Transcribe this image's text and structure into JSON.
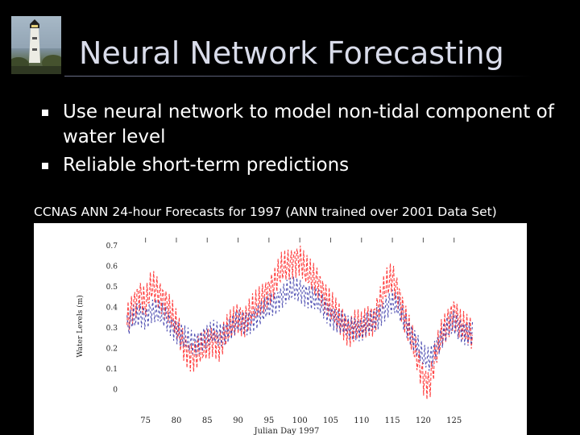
{
  "slide": {
    "title": "Neural Network Forecasting",
    "bullets": [
      "Use neural network to model non-tidal component of water level",
      "Reliable short-term predictions"
    ],
    "caption": "CCNAS ANN 24-hour Forecasts for 1997 (ANN trained over 2001 Data Set)",
    "logo_icon": "lighthouse-icon",
    "colors": {
      "background": "#000000",
      "title": "#d9dcea",
      "observed": "#ff2a2a",
      "forecast": "#3a3aa8"
    }
  },
  "chart_data": {
    "type": "line",
    "xlabel": "Julian Day 1997",
    "ylabel": "Water Levels (m)",
    "xlim": [
      71,
      130
    ],
    "ylim": [
      -0.05,
      0.75
    ],
    "x_ticks": [
      75,
      80,
      85,
      90,
      95,
      100,
      105,
      110,
      115,
      120,
      125
    ],
    "y_ticks": [
      0,
      0.1,
      0.2,
      0.3,
      0.4,
      0.5,
      0.6,
      0.7
    ],
    "x_tick_labels": [
      "75",
      "80",
      "85",
      "90",
      "95",
      "100",
      "105",
      "110",
      "115",
      "120",
      "125"
    ],
    "y_tick_labels": [
      "0",
      "0.1",
      "0.2",
      "0.3",
      "0.4",
      "0.5",
      "0.6",
      "0.7"
    ],
    "series": [
      {
        "color": "#ff2a2a",
        "x": [
          72,
          73,
          74,
          75,
          76,
          77,
          78,
          79,
          80,
          81,
          82,
          83,
          84,
          85,
          86,
          87,
          88,
          89,
          90,
          91,
          92,
          93,
          94,
          95,
          96,
          97,
          98,
          99,
          100,
          101,
          102,
          103,
          104,
          105,
          106,
          107,
          108,
          109,
          110,
          111,
          112,
          113,
          114,
          115,
          116,
          117,
          118,
          119,
          120,
          121,
          122,
          123,
          124,
          125,
          126,
          127,
          128
        ],
        "y": [
          0.33,
          0.4,
          0.46,
          0.41,
          0.5,
          0.47,
          0.43,
          0.38,
          0.3,
          0.22,
          0.17,
          0.16,
          0.19,
          0.21,
          0.24,
          0.21,
          0.27,
          0.31,
          0.35,
          0.33,
          0.37,
          0.4,
          0.44,
          0.48,
          0.52,
          0.58,
          0.6,
          0.62,
          0.63,
          0.57,
          0.54,
          0.52,
          0.45,
          0.4,
          0.35,
          0.32,
          0.28,
          0.31,
          0.29,
          0.33,
          0.34,
          0.42,
          0.5,
          0.54,
          0.46,
          0.35,
          0.25,
          0.15,
          0.05,
          0.02,
          0.16,
          0.26,
          0.32,
          0.38,
          0.31,
          0.28,
          0.26
        ]
      },
      {
        "color": "#3a3aa8",
        "x": [
          72,
          73,
          74,
          75,
          76,
          77,
          78,
          79,
          80,
          81,
          82,
          83,
          84,
          85,
          86,
          87,
          88,
          89,
          90,
          91,
          92,
          93,
          94,
          95,
          96,
          97,
          98,
          99,
          100,
          101,
          102,
          103,
          104,
          105,
          106,
          107,
          108,
          109,
          110,
          111,
          112,
          113,
          114,
          115,
          116,
          117,
          118,
          119,
          120,
          121,
          122,
          123,
          124,
          125,
          126,
          127,
          128
        ],
        "y": [
          0.3,
          0.34,
          0.36,
          0.35,
          0.38,
          0.37,
          0.35,
          0.32,
          0.28,
          0.25,
          0.23,
          0.22,
          0.24,
          0.25,
          0.27,
          0.26,
          0.28,
          0.3,
          0.32,
          0.31,
          0.33,
          0.35,
          0.37,
          0.4,
          0.42,
          0.45,
          0.47,
          0.48,
          0.48,
          0.46,
          0.44,
          0.42,
          0.39,
          0.36,
          0.33,
          0.31,
          0.29,
          0.3,
          0.29,
          0.31,
          0.32,
          0.36,
          0.4,
          0.42,
          0.39,
          0.33,
          0.27,
          0.21,
          0.15,
          0.14,
          0.2,
          0.25,
          0.29,
          0.32,
          0.29,
          0.27,
          0.26
        ]
      }
    ],
    "grid": false
  }
}
